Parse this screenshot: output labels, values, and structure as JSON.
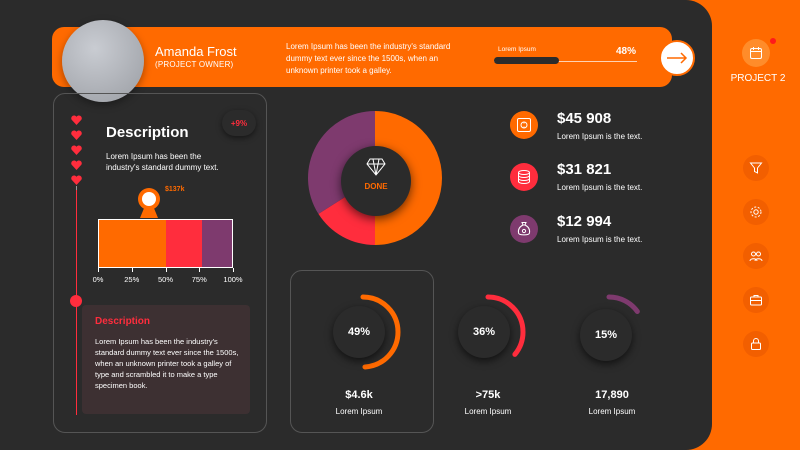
{
  "header": {
    "name": "Amanda Frost",
    "role": "(PROJECT OWNER)",
    "text": "Lorem Ipsum has been the industry's standard dummy text ever since the 1500s, when an unknown printer took a galley.",
    "progress_label": "Lorem Ipsum",
    "progress_pct": "48%",
    "progress_value": 0.48
  },
  "description": {
    "title": "Description",
    "badge": "+9%",
    "text": "Lorem Ipsum has been the industry's standard dummy text.",
    "marker_value": "$137k",
    "bar_segments": [
      {
        "from": 0,
        "to": 50,
        "color": "#ff6a00"
      },
      {
        "from": 50,
        "to": 77,
        "color": "#ff2d3d"
      },
      {
        "from": 77,
        "to": 100,
        "color": "#7e3a6e"
      }
    ],
    "ticks": [
      "0%",
      "25%",
      "50%",
      "75%",
      "100%"
    ],
    "box_title": "Description",
    "box_text": "Lorem Ipsum has been the industry's standard dummy text ever since the 1500s, when an unknown printer took a galley of type and scrambled it to make a type specimen book."
  },
  "donut": {
    "label": "DONE",
    "slices": [
      {
        "value": 50,
        "color": "#ff6a00"
      },
      {
        "value": 16,
        "color": "#ff2d3d"
      },
      {
        "value": 34,
        "color": "#7e3a6e"
      }
    ]
  },
  "stats": [
    {
      "value": "$45 908",
      "sub": "Lorem Ipsum is the text.",
      "color": "#ff6a00",
      "icon": "safe-icon"
    },
    {
      "value": "$31 821",
      "sub": "Lorem Ipsum is the text.",
      "color": "#ff2d3d",
      "icon": "database-icon"
    },
    {
      "value": "$12 994",
      "sub": "Lorem Ipsum is the text.",
      "color": "#7e3a6e",
      "icon": "money-bag-icon"
    }
  ],
  "rings": [
    {
      "pct": "49%",
      "fraction": 0.49,
      "value": "$4.6k",
      "sub": "Lorem Ipsum",
      "color": "#ff6a00"
    },
    {
      "pct": "36%",
      "fraction": 0.36,
      "value": ">75k",
      "sub": "Lorem Ipsum",
      "color": "#ff2d3d"
    },
    {
      "pct": "15%",
      "fraction": 0.15,
      "value": "17,890",
      "sub": "Lorem Ipsum",
      "color": "#7e3a6e"
    }
  ],
  "sidebar": {
    "project_label": "PROJECT 2",
    "icons": [
      "filter-icon",
      "gear-icon",
      "team-icon",
      "briefcase-icon",
      "lock-icon"
    ]
  }
}
